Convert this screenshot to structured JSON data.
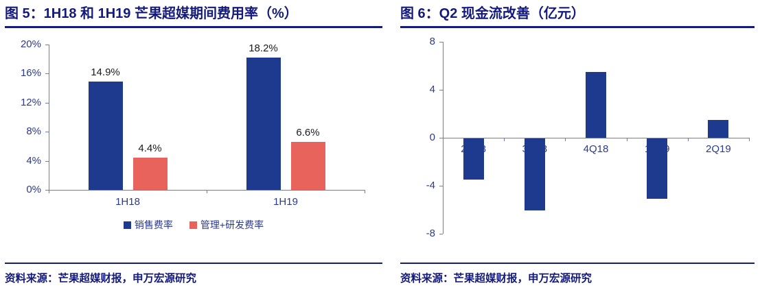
{
  "colors": {
    "title_navy": "#141A7C",
    "axis_line": "#6B7AC4",
    "axis_text": "#2B3990",
    "bar_navy": "#1E3A8F",
    "bar_red": "#E8635C",
    "data_label": "#1A1A1A"
  },
  "chart_data": [
    {
      "type": "bar",
      "title": "图 5：1H18 和 1H19 芒果超媒期间费用率（%）",
      "categories": [
        "1H18",
        "1H19"
      ],
      "series": [
        {
          "name": "销售费率",
          "values": [
            14.9,
            18.2
          ],
          "labels": [
            "14.9%",
            "18.2%"
          ],
          "color": "#1E3A8F"
        },
        {
          "name": "管理+研发费率",
          "values": [
            4.4,
            6.6
          ],
          "labels": [
            "4.4%",
            "6.6%"
          ],
          "color": "#E8635C"
        }
      ],
      "ylim": [
        0,
        20
      ],
      "yticks": [
        0,
        4,
        8,
        12,
        16,
        20
      ],
      "ytick_labels": [
        "0%",
        "4%",
        "8%",
        "12%",
        "16%",
        "20%"
      ],
      "grid": false,
      "legend_position": "bottom",
      "source": "资料来源：芒果超媒财报，申万宏源研究"
    },
    {
      "type": "bar",
      "title": "图 6：Q2 现金流改善（亿元）",
      "categories": [
        "2Q18",
        "3Q18",
        "4Q18",
        "1Q19",
        "2Q19"
      ],
      "values": [
        -3.4,
        -6.0,
        5.5,
        -5.0,
        1.5
      ],
      "ylim": [
        -8,
        8
      ],
      "yticks": [
        -8,
        -4,
        0,
        4,
        8
      ],
      "ytick_labels": [
        "-8",
        "-4",
        "0",
        "4",
        "8"
      ],
      "bar_color": "#1E3A8F",
      "grid": false,
      "legend_position": "none",
      "source": "资料来源：芒果超媒财报，申万宏源研究"
    }
  ]
}
